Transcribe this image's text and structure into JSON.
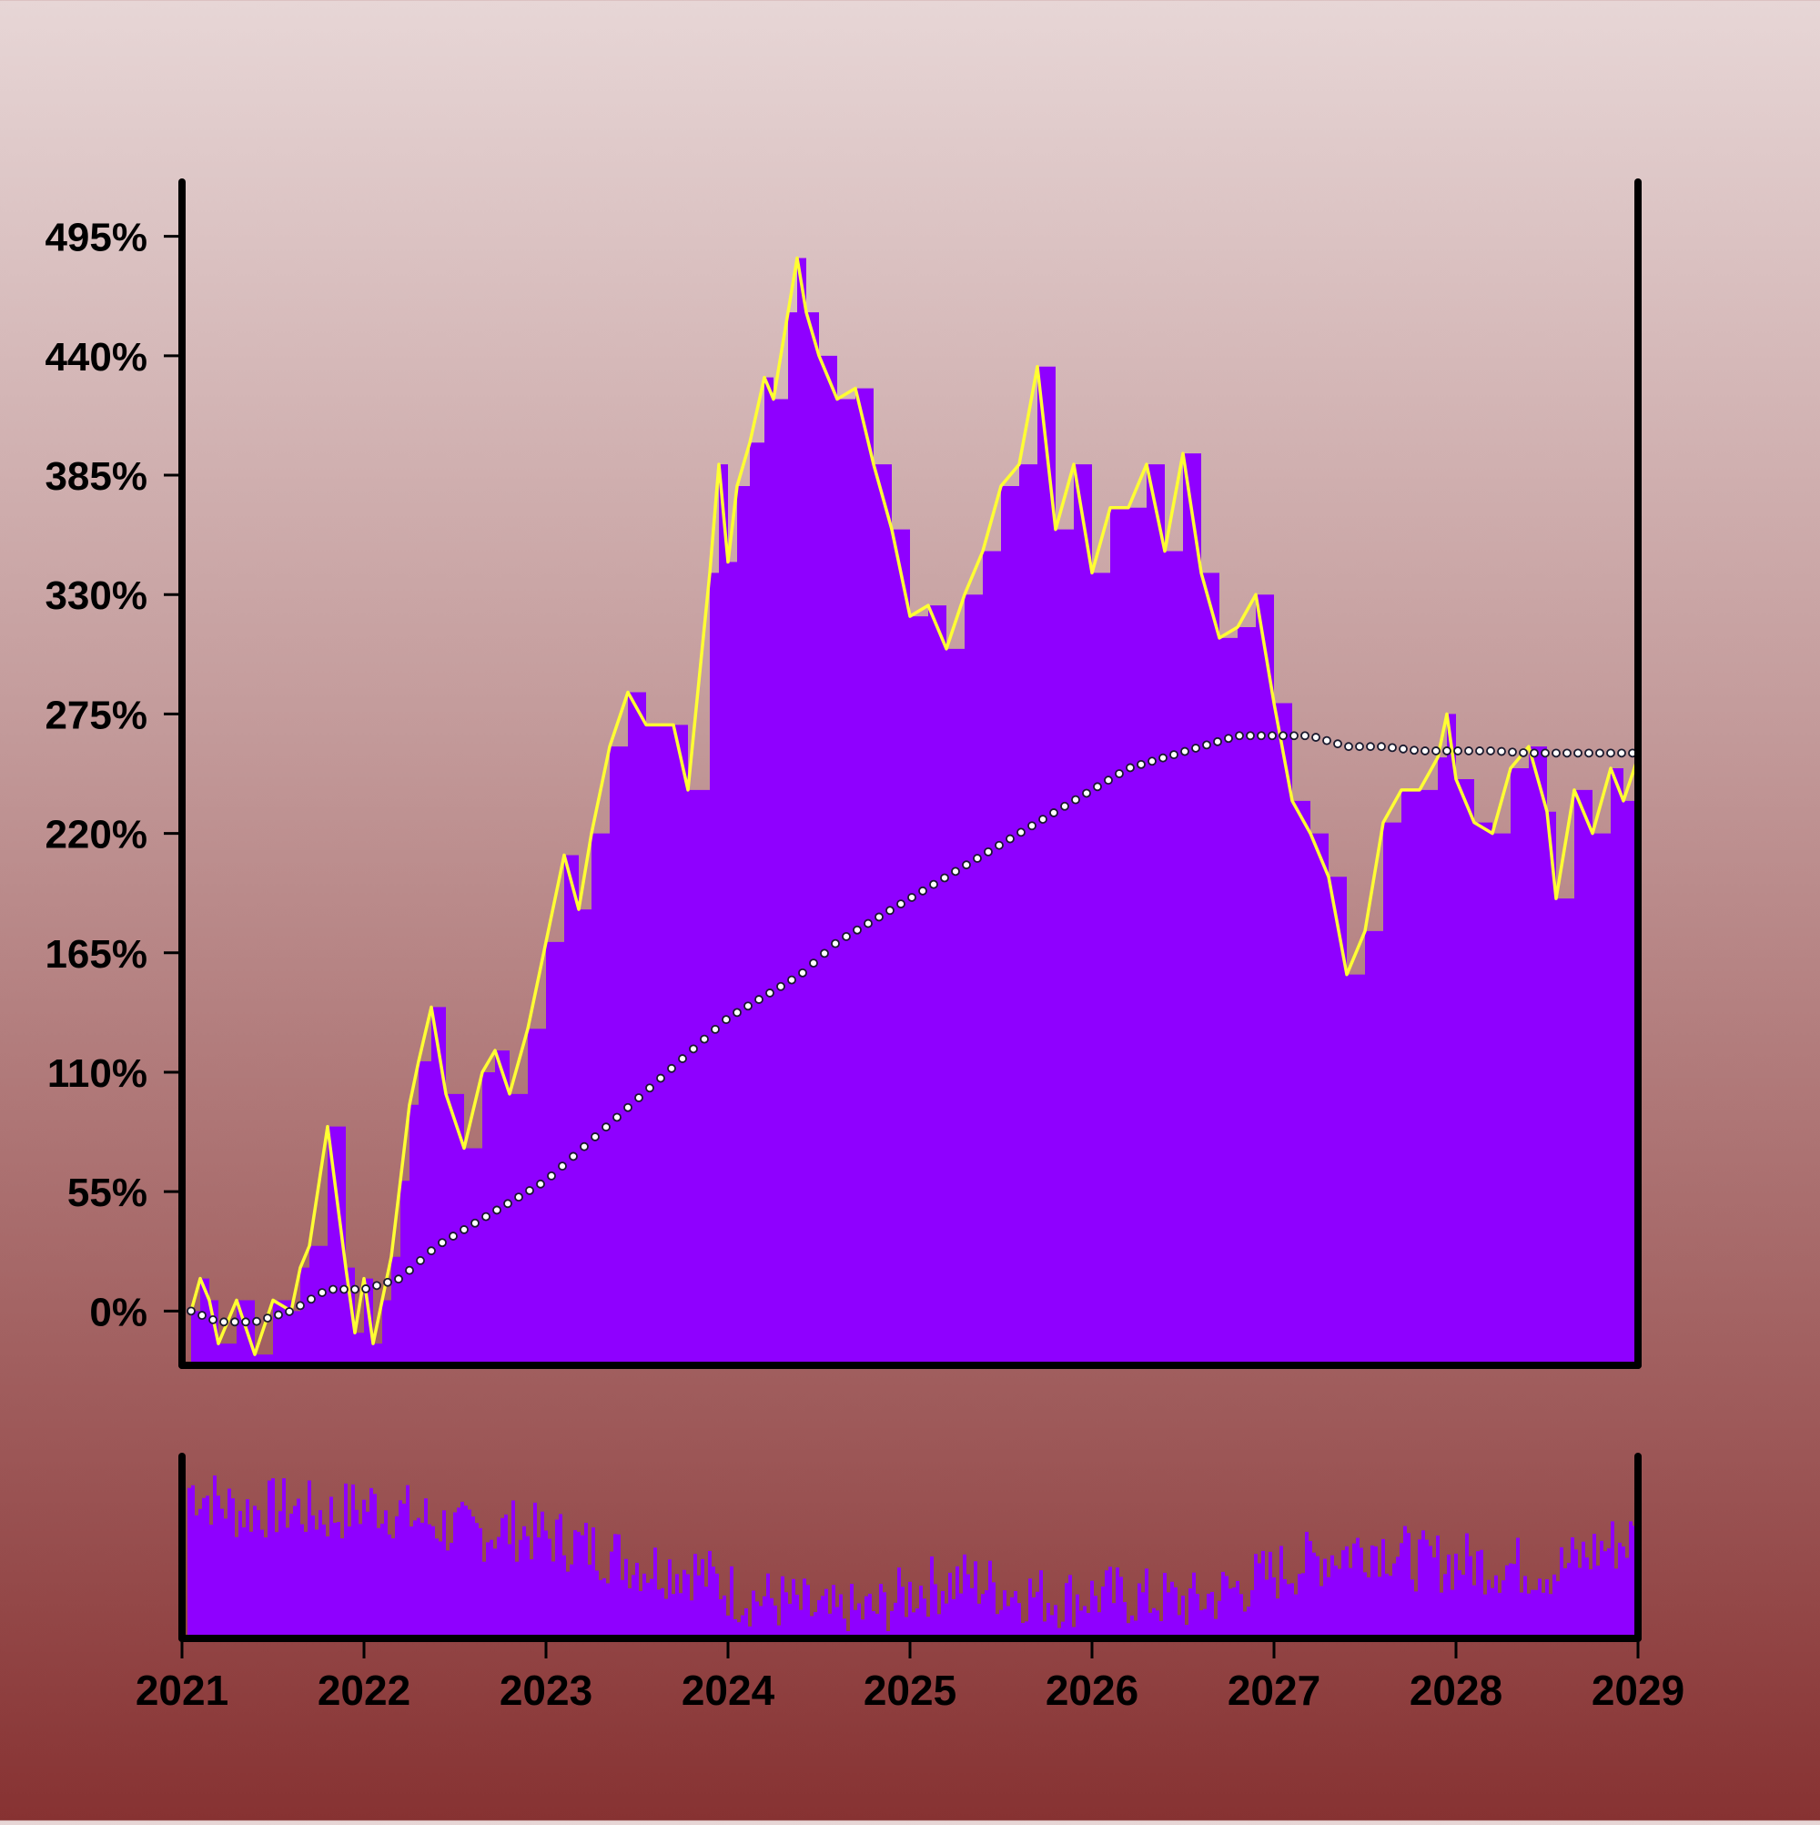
{
  "colors": {
    "area_fill": "#8f00ff",
    "line_stroke": "#ffff33",
    "trend_marker_fill": "#ffffff",
    "trend_marker_stroke": "#1a1a2e",
    "axis": "#000000",
    "background_top": "#e7d6d6",
    "background_bottom": "#873232"
  },
  "chart_data": {
    "type": "area",
    "title": "",
    "xlabel": "",
    "ylabel": "",
    "x_ticks": [
      "2021",
      "2022",
      "2023",
      "2024",
      "2025",
      "2026",
      "2027",
      "2028",
      "2029"
    ],
    "y_ticks": [
      "0%",
      "55%",
      "110%",
      "165%",
      "220%",
      "275%",
      "330%",
      "385%",
      "440%",
      "495%"
    ],
    "y_tick_values": [
      0,
      55,
      110,
      165,
      220,
      275,
      330,
      385,
      440,
      495
    ],
    "xlim": [
      2021.0,
      2029.0
    ],
    "ylim": [
      -25,
      520
    ],
    "grid": false,
    "legend": "none",
    "series": [
      {
        "kind": "area_step",
        "points": [
          [
            2021.05,
            0
          ],
          [
            2021.1,
            15
          ],
          [
            2021.15,
            5
          ],
          [
            2021.2,
            -15
          ],
          [
            2021.3,
            5
          ],
          [
            2021.4,
            -20
          ],
          [
            2021.5,
            5
          ],
          [
            2021.6,
            0
          ],
          [
            2021.65,
            20
          ],
          [
            2021.7,
            30
          ],
          [
            2021.8,
            85
          ],
          [
            2021.9,
            20
          ],
          [
            2021.95,
            -10
          ],
          [
            2022.0,
            15
          ],
          [
            2022.05,
            -15
          ],
          [
            2022.1,
            5
          ],
          [
            2022.15,
            25
          ],
          [
            2022.2,
            60
          ],
          [
            2022.25,
            95
          ],
          [
            2022.3,
            115
          ],
          [
            2022.37,
            140
          ],
          [
            2022.45,
            100
          ],
          [
            2022.55,
            75
          ],
          [
            2022.65,
            110
          ],
          [
            2022.72,
            120
          ],
          [
            2022.8,
            100
          ],
          [
            2022.9,
            130
          ],
          [
            2023.0,
            170
          ],
          [
            2023.1,
            210
          ],
          [
            2023.18,
            185
          ],
          [
            2023.25,
            220
          ],
          [
            2023.35,
            260
          ],
          [
            2023.45,
            285
          ],
          [
            2023.55,
            270
          ],
          [
            2023.7,
            270
          ],
          [
            2023.78,
            240
          ],
          [
            2023.9,
            340
          ],
          [
            2023.95,
            390
          ],
          [
            2024.0,
            345
          ],
          [
            2024.05,
            380
          ],
          [
            2024.12,
            400
          ],
          [
            2024.2,
            430
          ],
          [
            2024.25,
            420
          ],
          [
            2024.33,
            460
          ],
          [
            2024.38,
            485
          ],
          [
            2024.43,
            460
          ],
          [
            2024.5,
            440
          ],
          [
            2024.6,
            420
          ],
          [
            2024.7,
            425
          ],
          [
            2024.8,
            390
          ],
          [
            2024.9,
            360
          ],
          [
            2025.0,
            320
          ],
          [
            2025.1,
            325
          ],
          [
            2025.2,
            305
          ],
          [
            2025.3,
            330
          ],
          [
            2025.4,
            350
          ],
          [
            2025.5,
            380
          ],
          [
            2025.6,
            390
          ],
          [
            2025.7,
            435
          ],
          [
            2025.8,
            360
          ],
          [
            2025.9,
            390
          ],
          [
            2026.0,
            340
          ],
          [
            2026.1,
            370
          ],
          [
            2026.2,
            370
          ],
          [
            2026.3,
            390
          ],
          [
            2026.4,
            350
          ],
          [
            2026.5,
            395
          ],
          [
            2026.6,
            340
          ],
          [
            2026.7,
            310
          ],
          [
            2026.8,
            315
          ],
          [
            2026.9,
            330
          ],
          [
            2027.0,
            280
          ],
          [
            2027.1,
            235
          ],
          [
            2027.2,
            220
          ],
          [
            2027.3,
            200
          ],
          [
            2027.4,
            155
          ],
          [
            2027.5,
            175
          ],
          [
            2027.6,
            225
          ],
          [
            2027.7,
            240
          ],
          [
            2027.8,
            240
          ],
          [
            2027.9,
            255
          ],
          [
            2027.95,
            275
          ],
          [
            2028.0,
            245
          ],
          [
            2028.1,
            225
          ],
          [
            2028.2,
            220
          ],
          [
            2028.3,
            250
          ],
          [
            2028.4,
            260
          ],
          [
            2028.5,
            230
          ],
          [
            2028.55,
            190
          ],
          [
            2028.65,
            240
          ],
          [
            2028.75,
            220
          ],
          [
            2028.85,
            250
          ],
          [
            2028.92,
            235
          ],
          [
            2029.0,
            255
          ]
        ]
      },
      {
        "kind": "trend_dots",
        "points": [
          [
            2021.05,
            0
          ],
          [
            2021.2,
            -5
          ],
          [
            2021.4,
            -5
          ],
          [
            2021.6,
            0
          ],
          [
            2021.8,
            10
          ],
          [
            2022.0,
            10
          ],
          [
            2022.2,
            15
          ],
          [
            2022.4,
            30
          ],
          [
            2022.6,
            40
          ],
          [
            2022.8,
            50
          ],
          [
            2023.0,
            60
          ],
          [
            2023.2,
            75
          ],
          [
            2023.4,
            90
          ],
          [
            2023.6,
            105
          ],
          [
            2023.8,
            120
          ],
          [
            2024.0,
            135
          ],
          [
            2024.2,
            145
          ],
          [
            2024.4,
            155
          ],
          [
            2024.6,
            170
          ],
          [
            2024.8,
            180
          ],
          [
            2025.0,
            190
          ],
          [
            2025.2,
            200
          ],
          [
            2025.4,
            210
          ],
          [
            2025.6,
            220
          ],
          [
            2025.8,
            230
          ],
          [
            2026.0,
            240
          ],
          [
            2026.2,
            250
          ],
          [
            2026.4,
            255
          ],
          [
            2026.6,
            260
          ],
          [
            2026.8,
            265
          ],
          [
            2027.0,
            265
          ],
          [
            2027.2,
            265
          ],
          [
            2027.4,
            260
          ],
          [
            2027.6,
            260
          ],
          [
            2027.8,
            258
          ],
          [
            2028.0,
            258
          ],
          [
            2028.2,
            258
          ],
          [
            2028.4,
            257
          ],
          [
            2028.6,
            257
          ],
          [
            2028.8,
            257
          ],
          [
            2029.0,
            257
          ]
        ]
      },
      {
        "kind": "volume_bars",
        "profile": [
          [
            2021.05,
            0.82
          ],
          [
            2021.3,
            0.7
          ],
          [
            2021.55,
            0.72
          ],
          [
            2021.8,
            0.68
          ],
          [
            2022.05,
            0.74
          ],
          [
            2022.3,
            0.66
          ],
          [
            2022.55,
            0.58
          ],
          [
            2022.8,
            0.6
          ],
          [
            2023.05,
            0.55
          ],
          [
            2023.3,
            0.48
          ],
          [
            2023.55,
            0.4
          ],
          [
            2023.8,
            0.38
          ],
          [
            2024.05,
            0.24
          ],
          [
            2024.3,
            0.2
          ],
          [
            2024.55,
            0.12
          ],
          [
            2024.8,
            0.15
          ],
          [
            2025.05,
            0.28
          ],
          [
            2025.3,
            0.32
          ],
          [
            2025.55,
            0.26
          ],
          [
            2025.8,
            0.22
          ],
          [
            2026.05,
            0.24
          ],
          [
            2026.3,
            0.22
          ],
          [
            2026.55,
            0.2
          ],
          [
            2026.8,
            0.28
          ],
          [
            2027.05,
            0.38
          ],
          [
            2027.3,
            0.46
          ],
          [
            2027.55,
            0.52
          ],
          [
            2027.8,
            0.42
          ],
          [
            2028.05,
            0.42
          ],
          [
            2028.3,
            0.4
          ],
          [
            2028.55,
            0.38
          ],
          [
            2028.8,
            0.5
          ],
          [
            2029.0,
            0.56
          ]
        ]
      }
    ]
  }
}
